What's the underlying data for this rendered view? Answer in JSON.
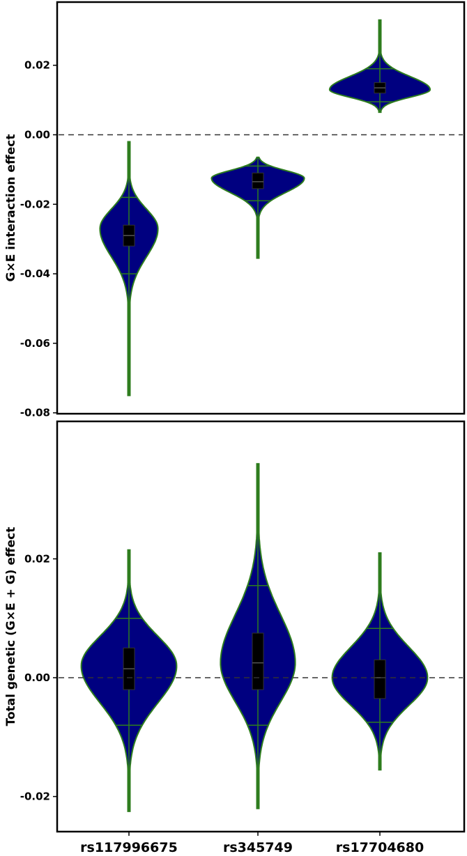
{
  "chart_data": [
    {
      "type": "violin",
      "title": "",
      "xlabel": "",
      "ylabel": "G×E interaction effect",
      "ylim": [
        -0.08,
        0.035
      ],
      "yticks": [
        0.02,
        0.0,
        -0.02,
        -0.04,
        -0.06,
        -0.08
      ],
      "ytick_labels": [
        "0.02",
        "0.00",
        "-0.02",
        "-0.04",
        "-0.06",
        "-0.08"
      ],
      "reference_line": 0.0,
      "categories": [
        "rs117996675",
        "rs345749",
        "rs17704680"
      ],
      "violins": [
        {
          "min": -0.075,
          "max": -0.002,
          "q1": -0.032,
          "median": -0.029,
          "q3": -0.026,
          "mode": -0.027,
          "whisker_low": -0.04,
          "whisker_high": -0.018,
          "half_width": 0.45
        },
        {
          "min": -0.0355,
          "max": -0.0065,
          "q1": -0.0155,
          "median": -0.0135,
          "q3": -0.011,
          "mode": -0.0125,
          "whisker_low": -0.019,
          "whisker_high": -0.009,
          "half_width": 0.72
        },
        {
          "min": 0.0065,
          "max": 0.033,
          "q1": 0.012,
          "median": 0.0135,
          "q3": 0.015,
          "mode": 0.013,
          "whisker_low": 0.0095,
          "whisker_high": 0.019,
          "half_width": 0.78
        }
      ],
      "colors": {
        "fill": "#000080",
        "outline": "#2e7d1e",
        "box": "#000000"
      }
    },
    {
      "type": "violin",
      "title": "",
      "xlabel": "",
      "ylabel": "Total genetic (G×E + G) effect",
      "ylim": [
        -0.026,
        0.039
      ],
      "yticks": [
        0.02,
        0.0,
        -0.02
      ],
      "ytick_labels": [
        "0.02",
        "0.00",
        "-0.02"
      ],
      "reference_line": 0.0,
      "categories": [
        "rs117996675",
        "rs345749",
        "rs17704680"
      ],
      "violins": [
        {
          "min": -0.0225,
          "max": 0.0215,
          "q1": -0.002,
          "median": 0.0015,
          "q3": 0.005,
          "mode": 0.002,
          "whisker_low": -0.008,
          "whisker_high": 0.01,
          "half_width": 0.74
        },
        {
          "min": -0.022,
          "max": 0.036,
          "q1": -0.002,
          "median": 0.0025,
          "q3": 0.0075,
          "mode": 0.0025,
          "whisker_low": -0.008,
          "whisker_high": 0.0155,
          "half_width": 0.58
        },
        {
          "min": -0.0155,
          "max": 0.021,
          "q1": -0.0035,
          "median": 0.0,
          "q3": 0.003,
          "mode": 0.0,
          "whisker_low": -0.0075,
          "whisker_high": 0.0083,
          "half_width": 0.74
        }
      ],
      "colors": {
        "fill": "#000080",
        "outline": "#2e7d1e",
        "box": "#000000"
      }
    }
  ]
}
